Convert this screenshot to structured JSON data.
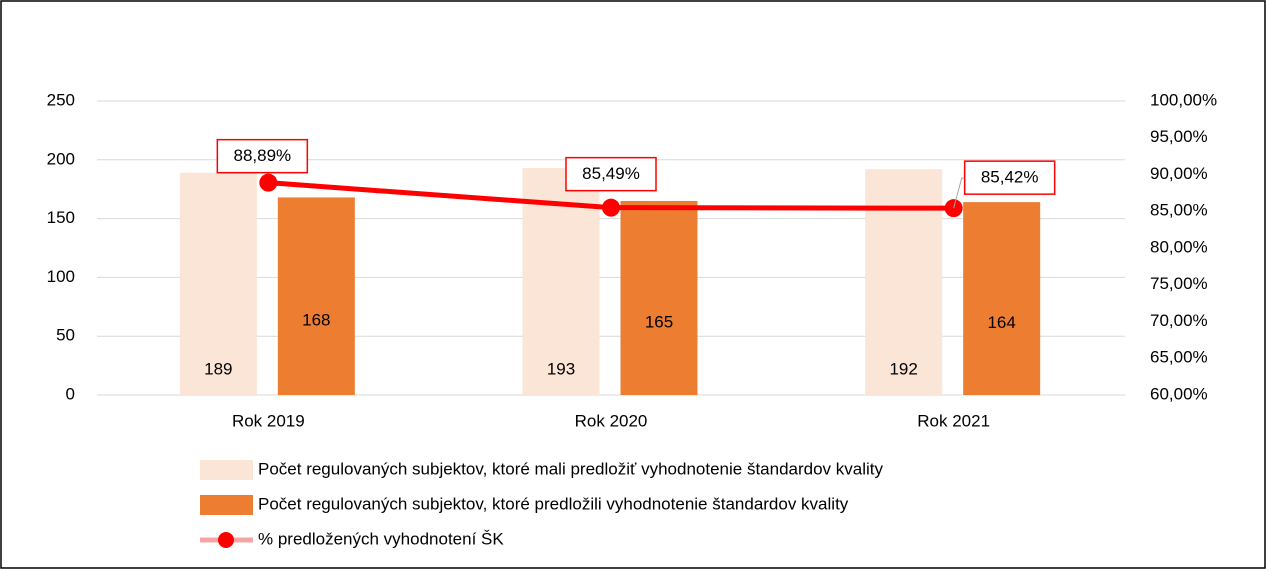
{
  "chart_data": {
    "type": "bar",
    "categories": [
      "Rok 2019",
      "Rok 2020",
      "Rok 2021"
    ],
    "series": [
      {
        "name": "Počet regulovaných subjektov, ktoré mali predložiť vyhodnotenie štandardov kvality",
        "color": "#fbe5d6",
        "type": "bar",
        "values": [
          189,
          193,
          192
        ]
      },
      {
        "name": "Počet regulovaných subjektov, ktoré predložili vyhodnotenie štandardov kvality",
        "color": "#ed7d31",
        "type": "bar",
        "values": [
          168,
          165,
          164
        ]
      },
      {
        "name": "% predložených vyhodnotení ŠK",
        "color": "#ff0000",
        "type": "line",
        "axis": "y2",
        "values": [
          88.89,
          85.49,
          85.42
        ],
        "value_labels": [
          "88,89%",
          "85,49%",
          "85,42%"
        ]
      }
    ],
    "ylim": [
      0,
      250
    ],
    "yticks": [
      0,
      50,
      100,
      150,
      200,
      250
    ],
    "y2lim": [
      60,
      100
    ],
    "y2ticks": [
      {
        "value": 60,
        "label": "60,00%"
      },
      {
        "value": 65,
        "label": "65,00%"
      },
      {
        "value": 70,
        "label": "70,00%"
      },
      {
        "value": 75,
        "label": "75,00%"
      },
      {
        "value": 80,
        "label": "80,00%"
      },
      {
        "value": 85,
        "label": "85,00%"
      },
      {
        "value": 90,
        "label": "90,00%"
      },
      {
        "value": 95,
        "label": "95,00%"
      },
      {
        "value": 100,
        "label": "100,00%"
      }
    ],
    "grid": true,
    "legend": "bottom"
  }
}
